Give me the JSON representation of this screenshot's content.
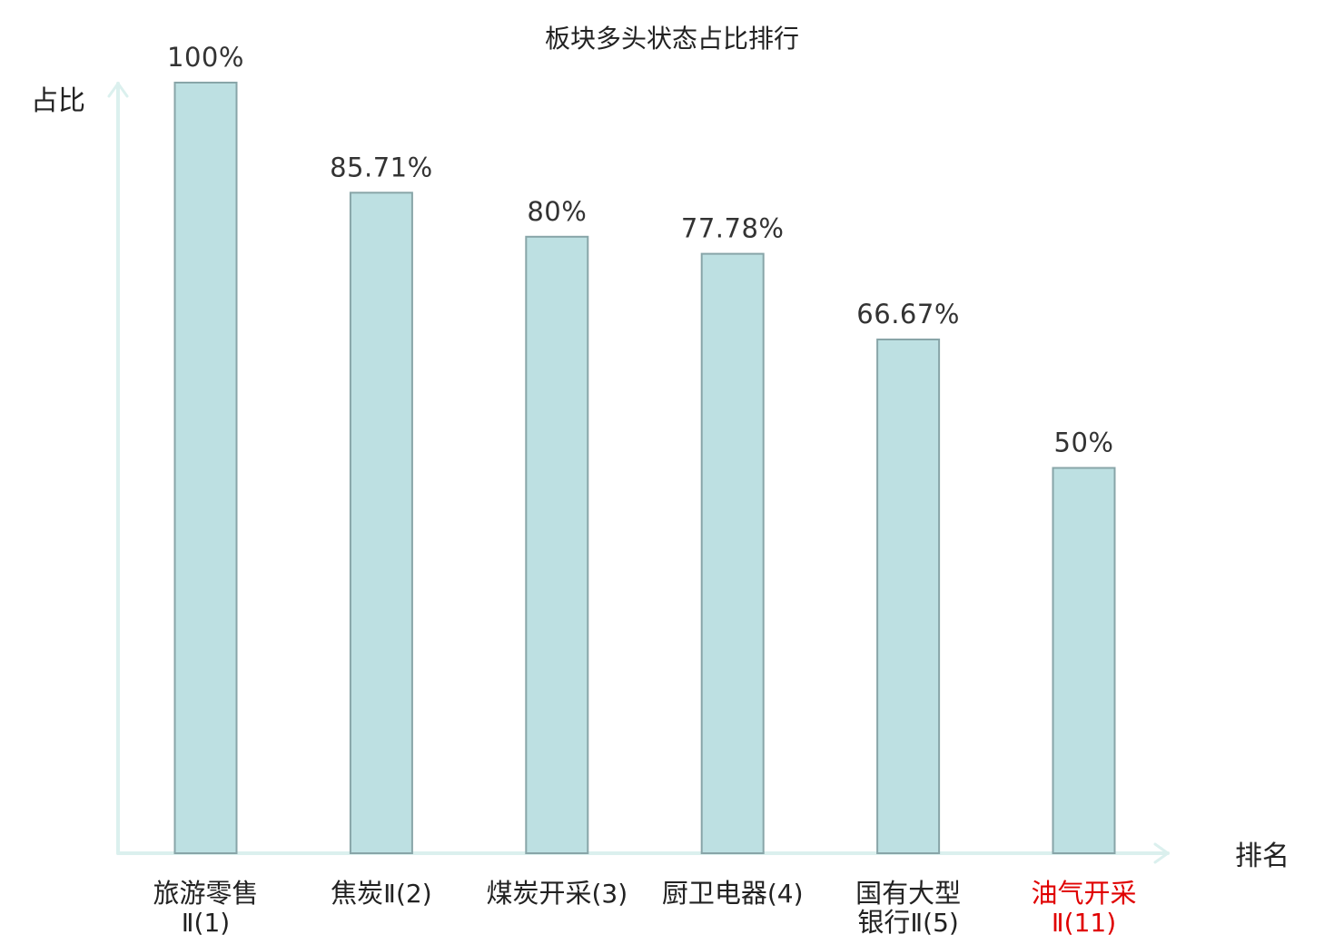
{
  "colors": {
    "bar_fill": "#bde0e2",
    "bar_stroke": "#88a5a8",
    "axis": "#dbf0ee",
    "text": "#222222",
    "value_text": "#333333",
    "highlight": "#e00000"
  },
  "chart_data": {
    "type": "bar",
    "title": "板块多头状态占比排行",
    "ylabel": "占比",
    "xlabel": "排名",
    "ylim": [
      0,
      100
    ],
    "grid": false,
    "legend": "none",
    "categories": [
      {
        "lines": [
          {
            "name": "旅游零售",
            "rank": ""
          },
          {
            "name": "",
            "rank": "Ⅱ(1)"
          }
        ],
        "highlight": false
      },
      {
        "lines": [
          {
            "name": "焦炭",
            "rank": "Ⅱ(2)"
          }
        ],
        "highlight": false
      },
      {
        "lines": [
          {
            "name": "煤炭开采",
            "rank": "(3)"
          }
        ],
        "highlight": false
      },
      {
        "lines": [
          {
            "name": "厨卫电器",
            "rank": "(4)"
          }
        ],
        "highlight": false
      },
      {
        "lines": [
          {
            "name": "国有大型",
            "rank": ""
          },
          {
            "name": "银行",
            "rank": "Ⅱ(5)"
          }
        ],
        "highlight": false
      },
      {
        "lines": [
          {
            "name": "油气开采",
            "rank": ""
          },
          {
            "name": "",
            "rank": "Ⅱ(11)"
          }
        ],
        "highlight": true
      }
    ],
    "values": [
      100,
      85.71,
      80,
      77.78,
      66.67,
      50
    ],
    "value_labels": [
      "100%",
      "85.71%",
      "80%",
      "77.78%",
      "66.67%",
      "50%"
    ]
  }
}
